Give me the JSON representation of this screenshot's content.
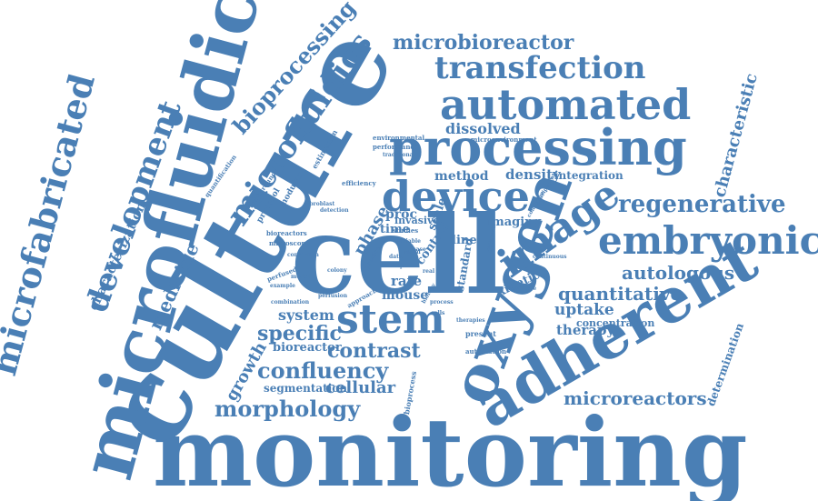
{
  "theme": {
    "word_color": "#4a7fb5",
    "background": "#ffffff"
  },
  "words": {
    "culture": "culture",
    "cell": "cell",
    "monitoring": "monitoring",
    "microfluidic": "microfluidic",
    "adherent": "adherent",
    "oxygen": "oxygen",
    "processing": "processing",
    "automated": "automated",
    "device": "device",
    "stem": "stem",
    "image": "image",
    "embryonic": "embryonic",
    "transfection": "transfection",
    "microfabricated": "microfabricated",
    "development": "development",
    "microfluidics": "microfluidics",
    "bioprocessing": "bioprocessing",
    "regenerative": "regenerative",
    "confluency": "confluency",
    "morphology": "morphology",
    "microbioreactor": "microbioreactor",
    "contrast": "contrast",
    "quantitative": "quantitative",
    "autologous": "autologous",
    "characteristic": "characteristic",
    "microreactors": "microreactors",
    "specific": "specific",
    "system": "system",
    "cellular": "cellular",
    "medicine": "medicine",
    "growth": "growth",
    "characterization": "characterization",
    "dissolved": "dissolved",
    "density": "density",
    "uptake": "uptake",
    "therapy": "therapy",
    "bioreactor": "bioreactor",
    "segmentation": "segmentation",
    "phase": "phase",
    "method": "method",
    "integration": "integration",
    "imaging": "imaging",
    "kinetic": "kinetic",
    "rate": "rate",
    "mouse": "mouse",
    "control": "control",
    "proc": "proc",
    "time": "time",
    "line": "line",
    "invasive": "invasive",
    "standard": "standard",
    "scale": "scale",
    "concentration": "concentration",
    "determination": "determination",
    "environmental": "environmental",
    "microenvironment": "microenvironment",
    "performance": "performance",
    "traditional": "traditional",
    "efficiency": "efficiency",
    "protocol": "protocol",
    "modular": "modular",
    "estimation": "estimation",
    "quantification": "quantification",
    "background": "background",
    "fibroblast": "fibroblast",
    "detection": "detection",
    "bioreactors": "bioreactors",
    "microscope": "microscope",
    "correction": "correction",
    "perfused": "perfused",
    "example": "example",
    "combination": "combination",
    "perfusion": "perfusion",
    "approach": "approach",
    "studies": "studies",
    "present": "present",
    "automation": "automation",
    "bioprocess": "bioprocess",
    "continuous": "continuous",
    "facilitate": "facilitate",
    "pluripotent": "pluripotent",
    "condition": "condition",
    "different": "different",
    "case": "case",
    "rapid": "rapid",
    "real": "real",
    "data": "data",
    "step": "step",
    "colony": "colony",
    "model": "model",
    "precise": "precise",
    "biology": "biology",
    "therapies": "therapies",
    "process": "process",
    "variable": "variable",
    "cells": "cells"
  }
}
